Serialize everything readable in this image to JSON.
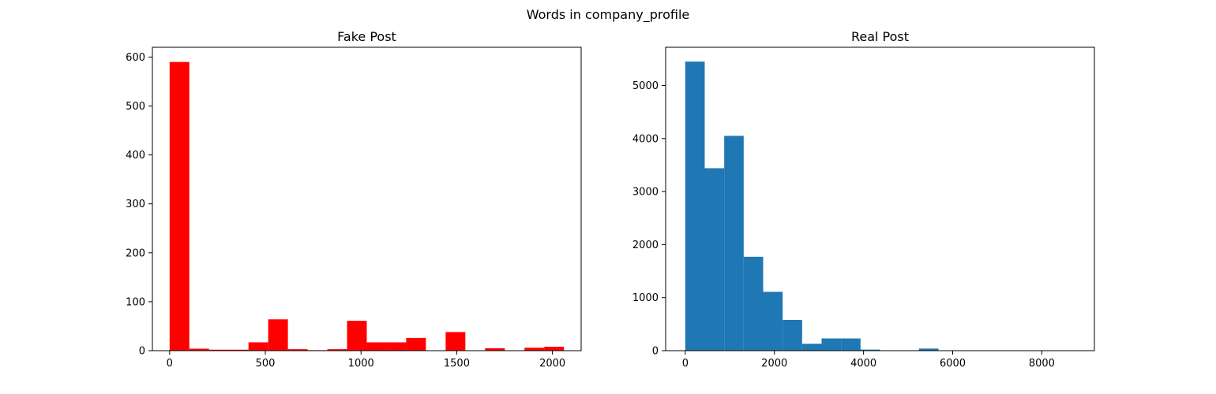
{
  "figure": {
    "suptitle": "Words in company_profile"
  },
  "chart_data": [
    {
      "type": "bar",
      "subtype": "histogram",
      "title": "Fake Post",
      "xlabel": "",
      "ylabel": "",
      "color": "#ff0000",
      "bins": [
        {
          "x0": 0,
          "x1": 103,
          "count": 590
        },
        {
          "x0": 103,
          "x1": 206,
          "count": 4
        },
        {
          "x0": 206,
          "x1": 309,
          "count": 2
        },
        {
          "x0": 309,
          "x1": 412,
          "count": 2
        },
        {
          "x0": 412,
          "x1": 515,
          "count": 17
        },
        {
          "x0": 515,
          "x1": 618,
          "count": 64
        },
        {
          "x0": 618,
          "x1": 721,
          "count": 3
        },
        {
          "x0": 721,
          "x1": 824,
          "count": 1
        },
        {
          "x0": 824,
          "x1": 927,
          "count": 3
        },
        {
          "x0": 927,
          "x1": 1030,
          "count": 61
        },
        {
          "x0": 1030,
          "x1": 1133,
          "count": 17
        },
        {
          "x0": 1133,
          "x1": 1236,
          "count": 17
        },
        {
          "x0": 1236,
          "x1": 1339,
          "count": 26
        },
        {
          "x0": 1339,
          "x1": 1442,
          "count": 0
        },
        {
          "x0": 1442,
          "x1": 1545,
          "count": 38
        },
        {
          "x0": 1545,
          "x1": 1648,
          "count": 0
        },
        {
          "x0": 1648,
          "x1": 1751,
          "count": 5
        },
        {
          "x0": 1751,
          "x1": 1854,
          "count": 0
        },
        {
          "x0": 1854,
          "x1": 1957,
          "count": 6
        },
        {
          "x0": 1957,
          "x1": 2060,
          "count": 8
        }
      ],
      "xlim": [
        -90,
        2150
      ],
      "ylim": [
        0,
        620
      ],
      "xticks": [
        0,
        500,
        1000,
        1500,
        2000
      ],
      "yticks": [
        0,
        100,
        200,
        300,
        400,
        500,
        600
      ],
      "grid": false
    },
    {
      "type": "bar",
      "subtype": "histogram",
      "title": "Real Post",
      "xlabel": "",
      "ylabel": "",
      "color": "#1f77b4",
      "bins": [
        {
          "x0": 0,
          "x1": 437,
          "count": 5450
        },
        {
          "x0": 437,
          "x1": 874,
          "count": 3440
        },
        {
          "x0": 874,
          "x1": 1311,
          "count": 4050
        },
        {
          "x0": 1311,
          "x1": 1748,
          "count": 1770
        },
        {
          "x0": 1748,
          "x1": 2185,
          "count": 1110
        },
        {
          "x0": 2185,
          "x1": 2622,
          "count": 580
        },
        {
          "x0": 2622,
          "x1": 3059,
          "count": 130
        },
        {
          "x0": 3059,
          "x1": 3496,
          "count": 230
        },
        {
          "x0": 3496,
          "x1": 3933,
          "count": 230
        },
        {
          "x0": 3933,
          "x1": 4370,
          "count": 20
        },
        {
          "x0": 4370,
          "x1": 4807,
          "count": 0
        },
        {
          "x0": 4807,
          "x1": 5244,
          "count": 0
        },
        {
          "x0": 5244,
          "x1": 5681,
          "count": 40
        },
        {
          "x0": 5681,
          "x1": 6118,
          "count": 0
        },
        {
          "x0": 6118,
          "x1": 6555,
          "count": 0
        },
        {
          "x0": 6555,
          "x1": 6992,
          "count": 0
        },
        {
          "x0": 6992,
          "x1": 7429,
          "count": 0
        },
        {
          "x0": 7429,
          "x1": 7866,
          "count": 0
        },
        {
          "x0": 7866,
          "x1": 8303,
          "count": 0
        },
        {
          "x0": 8303,
          "x1": 8740,
          "count": 5
        }
      ],
      "xlim": [
        -440,
        9180
      ],
      "ylim": [
        0,
        5720
      ],
      "xticks": [
        0,
        2000,
        4000,
        6000,
        8000
      ],
      "yticks": [
        0,
        1000,
        2000,
        3000,
        4000,
        5000
      ],
      "grid": false
    }
  ]
}
